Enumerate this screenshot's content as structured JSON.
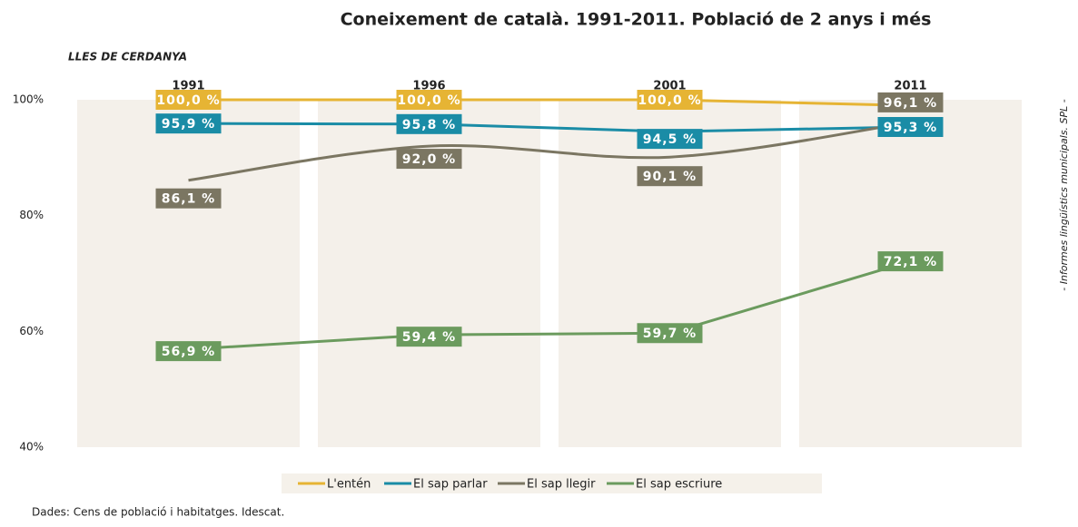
{
  "chart_data": {
    "type": "line",
    "title": "Coneixement de català. 1991-2011. Població de 2 anys i més",
    "subtitle": "LLES DE CERDANYA",
    "source": "Dades: Cens de població i habitatges. Idescat.",
    "side_note": "- Informes lingüístics municipals. SPL -",
    "categories": [
      "1991",
      "1996",
      "2001",
      "2011"
    ],
    "ylim": [
      40,
      100
    ],
    "yticks": [
      {
        "value": 40,
        "label": "40%"
      },
      {
        "value": 60,
        "label": "60%"
      },
      {
        "value": 80,
        "label": "80%"
      },
      {
        "value": 100,
        "label": "100%"
      }
    ],
    "legend": "bottom",
    "series": [
      {
        "name": "L'entén",
        "color": "#e6b434",
        "values": [
          100.0,
          100.0,
          100.0,
          99.0
        ],
        "value_labels": [
          "100,0 %",
          "100,0 %",
          "100,0 %",
          null
        ]
      },
      {
        "name": "El sap parlar",
        "color": "#1a8ca6",
        "values": [
          95.9,
          95.8,
          94.5,
          95.3
        ],
        "value_labels": [
          "95,9 %",
          "95,8 %",
          "94,5 %",
          "95,3 %"
        ]
      },
      {
        "name": "El sap llegir",
        "color": "#7b7662",
        "values": [
          86.1,
          92.0,
          90.1,
          96.1
        ],
        "value_labels": [
          "86,1 %",
          "92,0 %",
          "90,1 %",
          "96,1 %"
        ]
      },
      {
        "name": "El sap escriure",
        "color": "#6b9b5e",
        "values": [
          56.9,
          59.4,
          59.7,
          72.1
        ],
        "value_labels": [
          "56,9 %",
          "59,4 %",
          "59,7 %",
          "72,1 %"
        ]
      }
    ]
  }
}
